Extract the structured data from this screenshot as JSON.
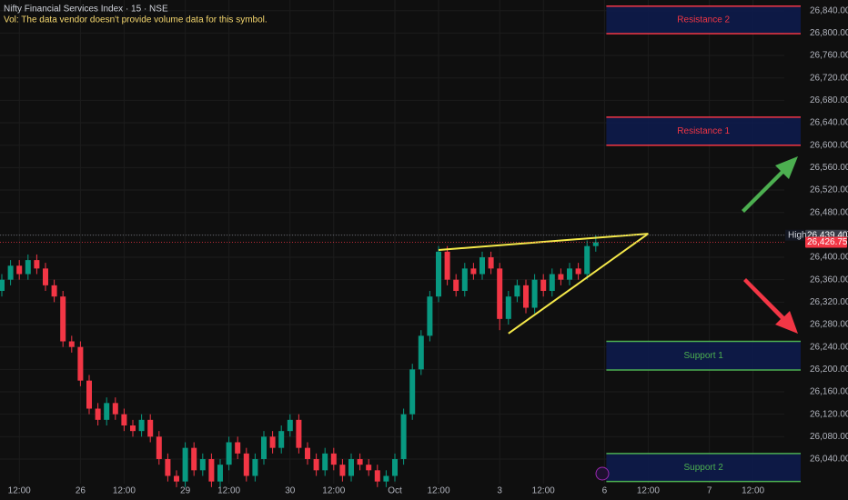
{
  "chart_data": {
    "type": "candlestick",
    "title": "Nifty Financial Services Index · 15 · NSE",
    "subtitle": "Vol: The data vendor doesn't provide volume data for this symbol.",
    "categories": [
      null,
      null,
      "12:00",
      null,
      null,
      null,
      null,
      null,
      null,
      "26",
      null,
      null,
      null,
      null,
      "12:00",
      null,
      null,
      null,
      null,
      null,
      null,
      "29",
      null,
      null,
      null,
      null,
      "12:00",
      null,
      null,
      null,
      null,
      null,
      null,
      "30",
      null,
      null,
      null,
      null,
      "12:00",
      null,
      null,
      null,
      null,
      null,
      null,
      "Oct",
      null,
      null,
      null,
      null,
      "12:00",
      null,
      null,
      null,
      null,
      null,
      null,
      "3",
      null,
      null,
      null,
      null,
      "12:00",
      null,
      null,
      null,
      null,
      null,
      null,
      "6",
      null,
      null,
      null,
      null,
      "12:00",
      null,
      null,
      null,
      null,
      null,
      null,
      "7",
      null,
      null,
      null,
      null,
      "12:00",
      null,
      null,
      null
    ],
    "open": [
      26340,
      26360,
      26385,
      26370,
      26395,
      26380,
      26350,
      26330,
      26250,
      26240,
      26180,
      26130,
      26110,
      26140,
      26120,
      26100,
      26090,
      26110,
      26080,
      26040,
      26010,
      26000,
      26060,
      26020,
      26040,
      26000,
      26030,
      26070,
      26050,
      26010,
      26040,
      26080,
      26060,
      26090,
      26110,
      26060,
      26040,
      26020,
      26050,
      26030,
      26010,
      26040,
      26030,
      26020,
      26000,
      26010,
      26040,
      26120,
      26200,
      26260,
      26330,
      26410,
      26360,
      26340,
      26380,
      26370,
      26400,
      26380,
      26290,
      26330,
      26350,
      26310,
      26360,
      26340,
      26370,
      26360,
      26380,
      26370,
      26420,
      null,
      null,
      null,
      null,
      null,
      null,
      null,
      null,
      null,
      null,
      null,
      null,
      null,
      null,
      null,
      null,
      null,
      null,
      null,
      null,
      null
    ],
    "high": [
      26370,
      26395,
      26395,
      26405,
      26405,
      26390,
      26360,
      26340,
      26260,
      26250,
      26190,
      26140,
      26150,
      26150,
      26130,
      26110,
      26120,
      26120,
      26090,
      26050,
      26020,
      26070,
      26070,
      26050,
      26050,
      26040,
      26080,
      26080,
      26060,
      26050,
      26090,
      26090,
      26100,
      26120,
      26120,
      26070,
      26050,
      26060,
      26060,
      26040,
      26050,
      26050,
      26040,
      26030,
      26020,
      26050,
      26130,
      26210,
      26270,
      26340,
      26420,
      26420,
      26370,
      26390,
      26390,
      26410,
      26410,
      26390,
      26340,
      26360,
      26360,
      26370,
      26370,
      26380,
      26380,
      26390,
      26390,
      26430,
      26439.4,
      null,
      null,
      null,
      null,
      null,
      null,
      null,
      null,
      null,
      null,
      null,
      null,
      null,
      null,
      null,
      null,
      null,
      null,
      null,
      null,
      null
    ],
    "low": [
      26330,
      26350,
      26360,
      26360,
      26370,
      26340,
      26320,
      26240,
      26230,
      26170,
      26120,
      26100,
      26100,
      26110,
      26090,
      26080,
      26080,
      26070,
      26030,
      26000,
      25990,
      25990,
      26010,
      26010,
      25990,
      25990,
      26020,
      26040,
      26000,
      26000,
      26030,
      26050,
      26050,
      26080,
      26050,
      26030,
      26010,
      26010,
      26020,
      26000,
      26000,
      26020,
      26010,
      25990,
      25990,
      26000,
      26030,
      26110,
      26190,
      26250,
      26320,
      26350,
      26330,
      26330,
      26360,
      26360,
      26370,
      26270,
      26280,
      26320,
      26300,
      26300,
      26330,
      26330,
      26350,
      26350,
      26360,
      26360,
      26410,
      null,
      null,
      null,
      null,
      null,
      null,
      null,
      null,
      null,
      null,
      null,
      null,
      null,
      null,
      null,
      null,
      null,
      null,
      null,
      null,
      null
    ],
    "close": [
      26360,
      26385,
      26370,
      26395,
      26380,
      26350,
      26330,
      26250,
      26240,
      26180,
      26130,
      26110,
      26140,
      26120,
      26100,
      26090,
      26110,
      26080,
      26040,
      26010,
      26000,
      26060,
      26020,
      26040,
      26000,
      26030,
      26070,
      26050,
      26010,
      26040,
      26080,
      26060,
      26090,
      26110,
      26060,
      26040,
      26020,
      26050,
      26030,
      26010,
      26040,
      26030,
      26020,
      26000,
      26010,
      26040,
      26120,
      26200,
      26260,
      26330,
      26410,
      26360,
      26340,
      26380,
      26370,
      26400,
      26380,
      26290,
      26330,
      26350,
      26310,
      26360,
      26340,
      26370,
      26360,
      26380,
      26370,
      26420,
      26426.75,
      null,
      null,
      null,
      null,
      null,
      null,
      null,
      null,
      null,
      null,
      null,
      null,
      null,
      null,
      null,
      null,
      null,
      null,
      null,
      null,
      null
    ],
    "up_color": "#089981",
    "down_color": "#f23645",
    "ylim": [
      25967,
      26859
    ],
    "yticks": [
      {
        "value": 26040,
        "label": "26,040.00"
      },
      {
        "value": 26080,
        "label": "26,080.00"
      },
      {
        "value": 26120,
        "label": "26,120.00"
      },
      {
        "value": 26160,
        "label": "26,160.00"
      },
      {
        "value": 26200,
        "label": "26,200.00"
      },
      {
        "value": 26240,
        "label": "26,240.00"
      },
      {
        "value": 26280,
        "label": "26,280.00"
      },
      {
        "value": 26320,
        "label": "26,320.00"
      },
      {
        "value": 26360,
        "label": "26,360.00"
      },
      {
        "value": 26400,
        "label": "26,400.00"
      },
      {
        "value": 26440,
        "label": "26,440.00"
      },
      {
        "value": 26480,
        "label": "26,480.00"
      },
      {
        "value": 26520,
        "label": "26,520.00"
      },
      {
        "value": 26560,
        "label": "26,560.00"
      },
      {
        "value": 26600,
        "label": "26,600.00"
      },
      {
        "value": 26640,
        "label": "26,640.00"
      },
      {
        "value": 26680,
        "label": "26,680.00"
      },
      {
        "value": 26720,
        "label": "26,720.00"
      },
      {
        "value": 26760,
        "label": "26,760.00"
      },
      {
        "value": 26800,
        "label": "26,800.00"
      },
      {
        "value": 26840,
        "label": "26,840.00"
      }
    ],
    "grid": true,
    "zones": [
      {
        "label": "Resistance 2",
        "low": 26799,
        "high": 26848,
        "color": "#f23645"
      },
      {
        "label": "Resistance 1",
        "low": 26600,
        "high": 26650,
        "color": "#f23645"
      },
      {
        "label": "Support 1",
        "low": 26199,
        "high": 26250,
        "color": "#4caf50"
      },
      {
        "label": "Support 2",
        "low": 26000,
        "high": 26050,
        "color": "#4caf50"
      }
    ],
    "trendlines": [
      {
        "x": [
          50,
          74
        ],
        "y": [
          26413,
          26442
        ],
        "color": "#f5e94a"
      },
      {
        "x": [
          58,
          74
        ],
        "y": [
          26264,
          26442
        ],
        "color": "#f5e94a"
      }
    ],
    "price_lines": [
      {
        "name": "High",
        "value": 26439.4,
        "label": "26,439.40",
        "color": "#363a45"
      },
      {
        "value": 26426.75,
        "label": "26,426.75",
        "color": "#f23645"
      }
    ]
  }
}
